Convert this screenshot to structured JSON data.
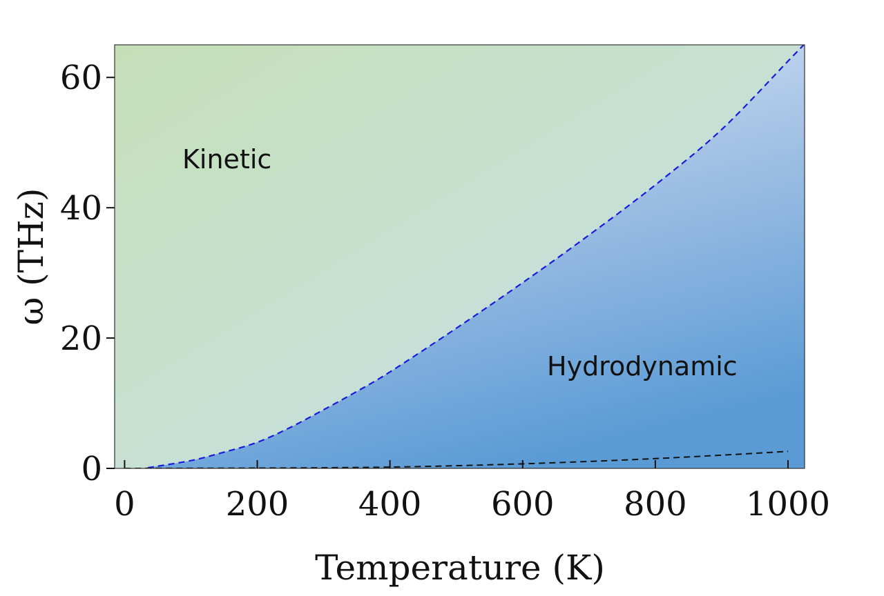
{
  "chart_data": {
    "type": "area",
    "title": "",
    "xlabel": "Temperature (K)",
    "ylabel": "ω (THz)",
    "xlim": [
      -15,
      1025
    ],
    "ylim": [
      0,
      65
    ],
    "x_ticks": [
      0,
      200,
      400,
      600,
      800,
      1000
    ],
    "x_tick_labels": [
      "0",
      "200",
      "400",
      "600",
      "800",
      "1000"
    ],
    "y_ticks": [
      0,
      20,
      40,
      60
    ],
    "y_tick_labels": [
      "0",
      "20",
      "40",
      "60"
    ],
    "grid": false,
    "legend": "none",
    "regions": [
      {
        "label": "Kinetic",
        "position": "upper-left",
        "color": "#c5e0b8"
      },
      {
        "label": "Hydrodynamic",
        "position": "lower-right",
        "color": "#5b9bd5"
      }
    ],
    "series": [
      {
        "style": "dashed",
        "color": "#1a1adc",
        "x": [
          35,
          100,
          150,
          200,
          250,
          300,
          350,
          400,
          500,
          600,
          700,
          800,
          900,
          1000
        ],
        "y": [
          0.1,
          1.2,
          2.5,
          4.0,
          6.3,
          9.0,
          11.8,
          14.8,
          21.5,
          28.5,
          35.8,
          43.5,
          52.0,
          62.5
        ]
      },
      {
        "style": "dashed",
        "color": "#111111",
        "x": [
          0,
          200,
          400,
          600,
          800,
          1000
        ],
        "y": [
          0,
          0.05,
          0.2,
          0.7,
          1.5,
          2.6
        ]
      }
    ]
  }
}
